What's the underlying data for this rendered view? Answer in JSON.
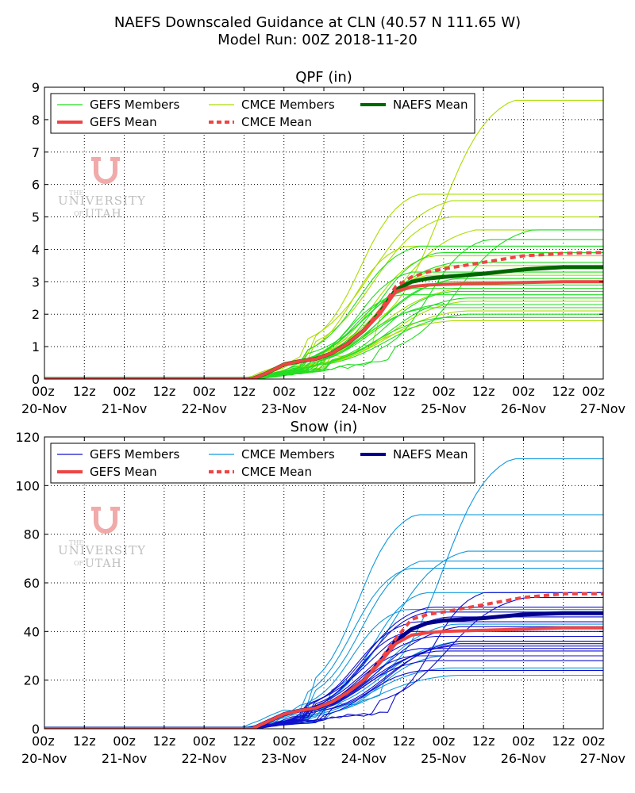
{
  "figure": {
    "title_line1": "NAEFS Downscaled Guidance at CLN (40.57 N 111.65 W)",
    "title_line2": "Model Run: 00Z 2018-11-20"
  },
  "logo": {
    "the": "THE",
    "university": "UNIVERSITY",
    "of": "OF",
    "utah": "UTAH",
    "letter": "U"
  },
  "colors": {
    "gefs_qpf": "#22dd22",
    "cmce_qpf": "#aadd00",
    "naefs_qpf": "#006600",
    "gefs_snow": "#1010cc",
    "cmce_snow": "#1199dd",
    "naefs_snow": "#00008b",
    "mean_red": "#ee4444",
    "logo": "#dd2222"
  },
  "x_axis": {
    "hour_ticks": [
      "00z",
      "12z",
      "00z",
      "12z",
      "00z",
      "12z",
      "00z",
      "12z",
      "00z",
      "12z",
      "00z",
      "12z",
      "00z",
      "12z",
      "00z"
    ],
    "date_labels": [
      "20-Nov",
      "21-Nov",
      "22-Nov",
      "23-Nov",
      "24-Nov",
      "25-Nov",
      "26-Nov",
      "27-Nov"
    ]
  },
  "chart_data": [
    {
      "type": "line",
      "title": "QPF (in)",
      "xlabel": "",
      "ylabel": "",
      "x_range": [
        "2018-11-20 00z",
        "2018-11-27 00z"
      ],
      "ylim": [
        0,
        9
      ],
      "yticks": [
        0,
        1,
        2,
        3,
        4,
        5,
        6,
        7,
        8,
        9
      ],
      "grid": true,
      "legend_placement": "top-left",
      "legend": [
        "GEFS Members",
        "CMCE Members",
        "NAEFS Mean",
        "GEFS Mean",
        "CMCE Mean"
      ],
      "x_days_template": [
        0,
        2.6,
        2.8,
        3.0,
        3.2,
        3.4,
        3.6,
        3.8,
        4.0,
        4.2,
        4.4,
        4.6,
        4.8,
        5.0,
        5.5,
        6.0,
        6.5,
        7.0
      ],
      "series": [
        {
          "name": "GEFS Mean",
          "values": [
            0,
            0,
            0.2,
            0.45,
            0.55,
            0.62,
            0.8,
            1.1,
            1.5,
            2.0,
            2.7,
            2.85,
            2.9,
            2.92,
            2.95,
            2.98,
            3.0,
            3.0
          ]
        },
        {
          "name": "CMCE Mean",
          "values": [
            0,
            0,
            0.2,
            0.45,
            0.55,
            0.62,
            0.8,
            1.1,
            1.5,
            2.1,
            2.85,
            3.15,
            3.3,
            3.4,
            3.6,
            3.8,
            3.88,
            3.9
          ]
        },
        {
          "name": "NAEFS Mean",
          "values": [
            0,
            0,
            0.2,
            0.45,
            0.55,
            0.62,
            0.8,
            1.1,
            1.5,
            2.05,
            2.75,
            3.0,
            3.1,
            3.15,
            3.25,
            3.38,
            3.45,
            3.45
          ]
        }
      ],
      "members": {
        "gefs_finals": [
          1.9,
          2.0,
          2.2,
          2.3,
          2.5,
          2.6,
          2.7,
          2.8,
          2.9,
          3.0,
          3.1,
          3.3,
          3.6,
          3.9,
          4.1,
          4.3,
          4.6
        ],
        "cmce_finals": [
          1.8,
          2.1,
          2.4,
          2.8,
          3.2,
          3.5,
          3.8,
          4.1,
          4.6,
          5.0,
          5.5,
          5.7,
          8.6
        ]
      }
    },
    {
      "type": "line",
      "title": "Snow (in)",
      "xlabel": "",
      "ylabel": "",
      "x_range": [
        "2018-11-20 00z",
        "2018-11-27 00z"
      ],
      "ylim": [
        0,
        120
      ],
      "yticks": [
        0,
        20,
        40,
        60,
        80,
        100,
        120
      ],
      "grid": true,
      "legend_placement": "top-left",
      "legend": [
        "GEFS Members",
        "CMCE Members",
        "NAEFS Mean",
        "GEFS Mean",
        "CMCE Mean"
      ],
      "x_days_template": [
        0,
        2.6,
        2.8,
        3.0,
        3.2,
        3.4,
        3.6,
        3.8,
        4.0,
        4.2,
        4.4,
        4.6,
        4.8,
        5.0,
        5.5,
        6.0,
        6.5,
        7.0
      ],
      "series": [
        {
          "name": "GEFS Mean",
          "values": [
            0,
            0,
            3,
            6,
            7.5,
            8.5,
            11,
            15,
            20,
            27,
            35,
            38.5,
            39.5,
            40,
            40.5,
            41,
            41.5,
            41.5
          ]
        },
        {
          "name": "CMCE Mean",
          "values": [
            0,
            0,
            3,
            6,
            7.5,
            8.5,
            11,
            15,
            20,
            28,
            37,
            45,
            47,
            48,
            51,
            54,
            55.5,
            55.5
          ]
        },
        {
          "name": "NAEFS Mean",
          "values": [
            0,
            0,
            3,
            6,
            7.5,
            8.5,
            11,
            15,
            20,
            27.5,
            36,
            41,
            43.5,
            44.5,
            45.5,
            47,
            47.5,
            47.5
          ]
        }
      ],
      "members": {
        "gefs_finals": [
          24,
          28,
          30,
          32,
          33,
          34,
          35,
          36,
          38,
          40,
          42,
          44,
          46,
          48,
          50,
          54,
          56
        ],
        "cmce_finals": [
          22,
          25,
          30,
          36,
          43,
          49,
          56,
          66,
          69,
          73,
          88,
          111
        ]
      }
    }
  ]
}
